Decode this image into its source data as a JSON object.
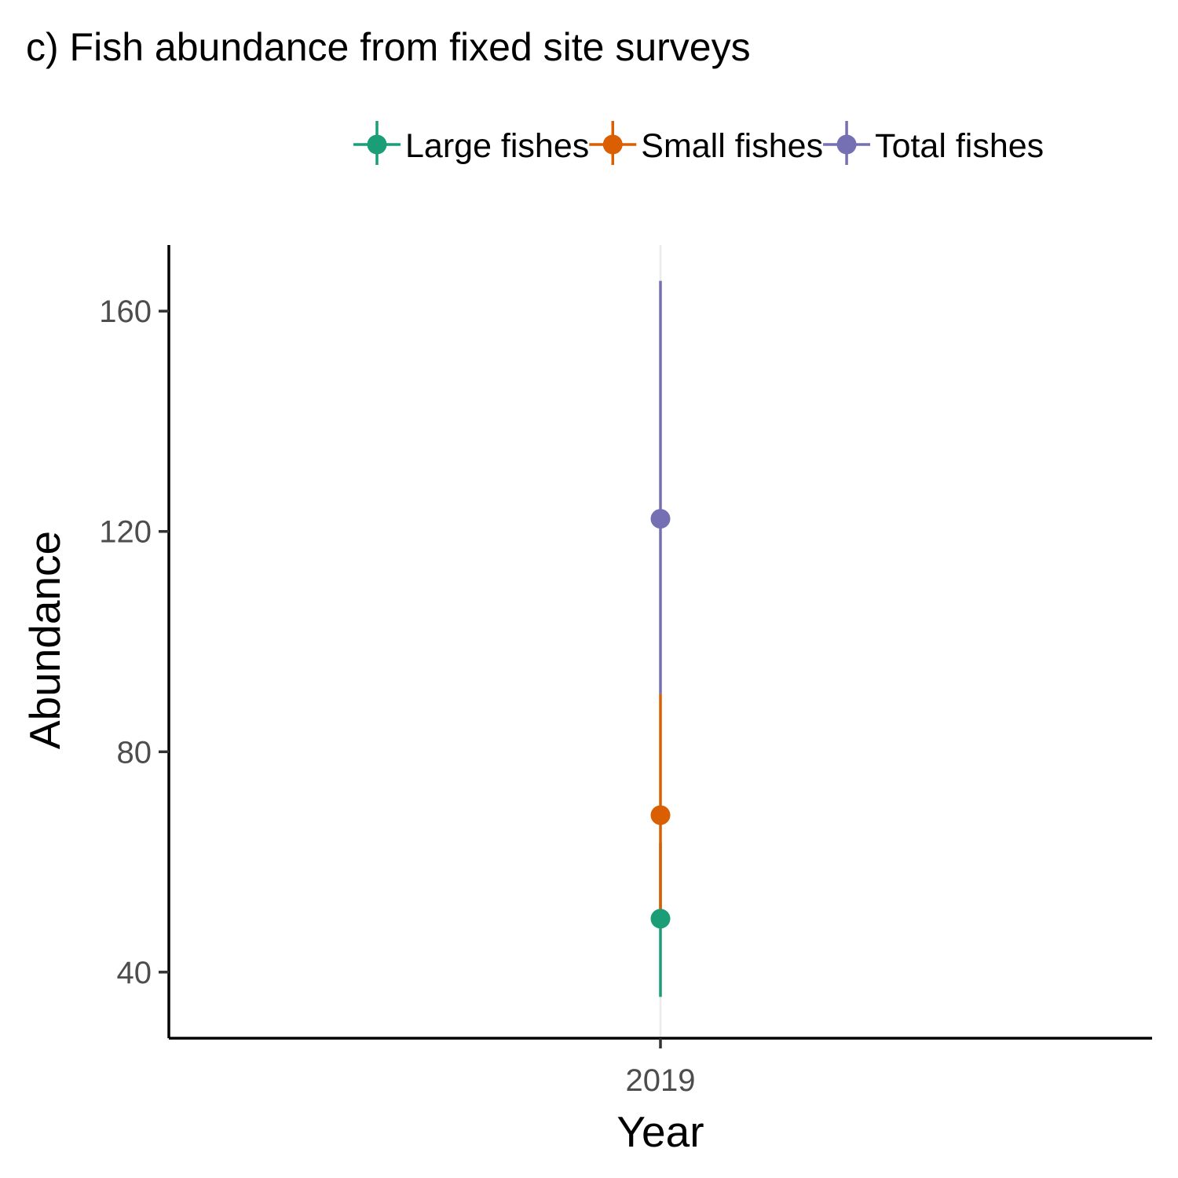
{
  "chart_data": {
    "type": "scatter",
    "title": "c) Fish abundance from fixed site surveys",
    "xlabel": "Year",
    "ylabel": "Abundance",
    "categories": [
      "2019"
    ],
    "ylim": [
      28,
      172
    ],
    "y_ticks": [
      40,
      80,
      120,
      160
    ],
    "x_ticks": [
      "2019"
    ],
    "grid": "vertical major line at category only",
    "legend_position": "top",
    "series": [
      {
        "name": "Large fishes",
        "color": "#1b9e77",
        "values": [
          49.7
        ],
        "lower": [
          35.5
        ],
        "upper": [
          63.5
        ]
      },
      {
        "name": "Small fishes",
        "color": "#d95f02",
        "values": [
          68.5
        ],
        "lower": [
          50.2
        ],
        "upper": [
          90.5
        ]
      },
      {
        "name": "Total fishes",
        "color": "#7570b3",
        "values": [
          122.3
        ],
        "lower": [
          90.5
        ],
        "upper": [
          165.5
        ]
      }
    ]
  }
}
